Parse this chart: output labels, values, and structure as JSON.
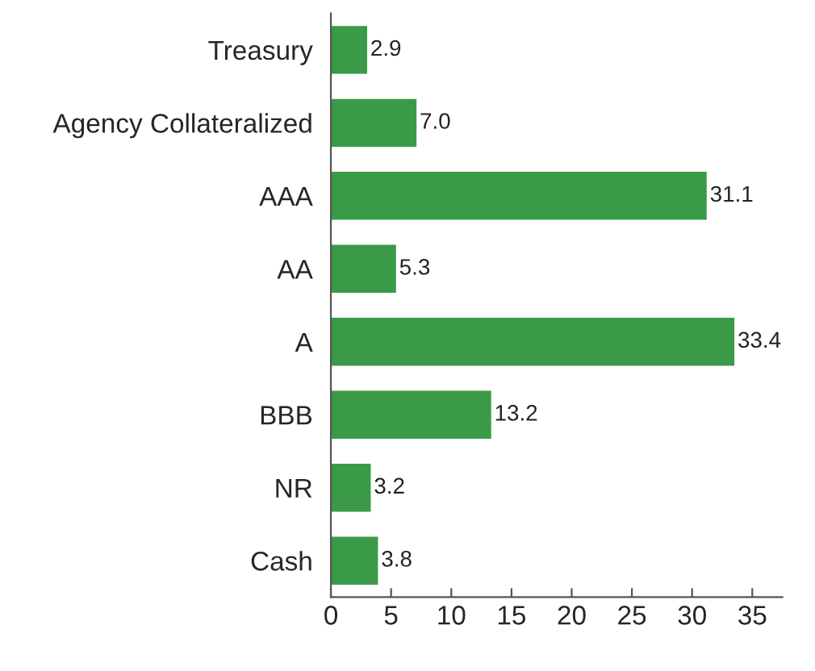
{
  "chart_data": {
    "type": "bar",
    "orientation": "horizontal",
    "categories": [
      "Treasury",
      "Agency Collateralized",
      "AAA",
      "AA",
      "A",
      "BBB",
      "NR",
      "Cash"
    ],
    "values": [
      2.9,
      7.0,
      31.1,
      5.3,
      33.4,
      13.2,
      3.2,
      3.8
    ],
    "color": "#3a9a48",
    "xlim": [
      0,
      37.5
    ],
    "xticks": [
      0,
      5,
      10,
      15,
      20,
      25,
      30,
      35
    ],
    "value_labels": [
      "2.9",
      "7.0",
      "31.1",
      "5.3",
      "33.4",
      "13.2",
      "3.2",
      "3.8"
    ],
    "grid": false
  }
}
